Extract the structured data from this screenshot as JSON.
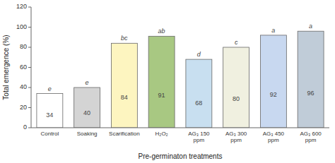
{
  "chart_data": {
    "type": "bar",
    "categories": [
      "Control",
      "Soaking",
      "Scarification",
      "H₂O₂",
      "AG₃ 150\nppm",
      "AG₃ 300\nppm",
      "AG₃ 450\nppm",
      "AG₃ 600\nppm"
    ],
    "values": [
      34,
      40,
      84,
      91,
      68,
      80,
      92,
      96
    ],
    "annotations": [
      "e",
      "e",
      "bc",
      "ab",
      "d",
      "c",
      "a",
      "a"
    ],
    "colors": [
      "#ffffff",
      "#d4d4d4",
      "#fdf5c0",
      "#a8c882",
      "#c8dff0",
      "#f0f0e0",
      "#c8d8f0",
      "#c0ccd8"
    ],
    "xlabel": "Pre-germinaton treatments",
    "ylabel": "Total emergence (%)",
    "ylim": [
      0,
      120
    ],
    "yticks": [
      0,
      20,
      40,
      60,
      80,
      100,
      120
    ],
    "data_labels": true,
    "grid": false
  }
}
